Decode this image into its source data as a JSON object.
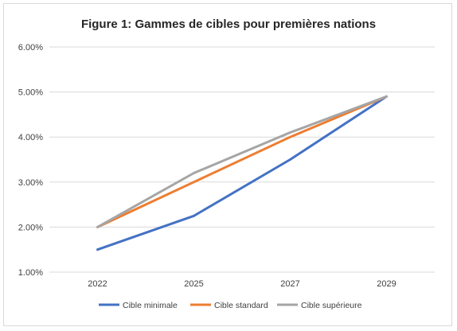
{
  "chart_data": {
    "type": "line",
    "title": "Figure 1: Gammes de cibles pour premières nations",
    "xlabel": "",
    "ylabel": "",
    "categories": [
      "2022",
      "2025",
      "2027",
      "2029"
    ],
    "y_tick_labels": [
      "1.00%",
      "2.00%",
      "3.00%",
      "4.00%",
      "5.00%",
      "6.00%"
    ],
    "ylim": [
      1.0,
      6.0
    ],
    "grid": true,
    "legend_position": "bottom",
    "series": [
      {
        "name": "Cible minimale",
        "color": "#4472c4",
        "values": [
          1.5,
          2.25,
          3.5,
          4.9
        ]
      },
      {
        "name": "Cible standard",
        "color": "#ed7d31",
        "values": [
          2.0,
          3.0,
          4.0,
          4.9
        ]
      },
      {
        "name": "Cible supérieure",
        "color": "#a5a5a5",
        "values": [
          2.0,
          3.2,
          4.1,
          4.9
        ]
      }
    ]
  }
}
